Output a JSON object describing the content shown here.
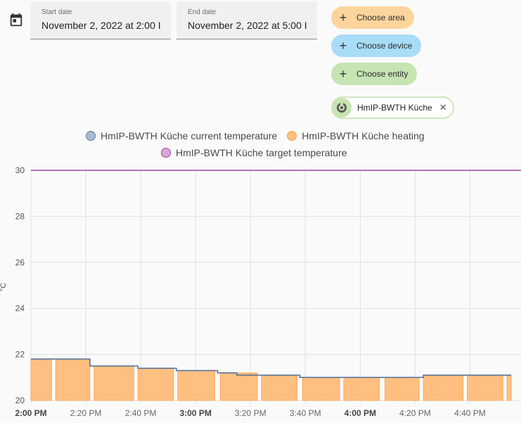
{
  "date_range": {
    "start_label": "Start date",
    "start_value": "November 2, 2022 at 2:00 I",
    "end_label": "End date",
    "end_value": "November 2, 2022 at 5:00 I",
    "icon": "calendar-icon"
  },
  "target_picker": {
    "choose_area": "Choose area",
    "choose_device": "Choose device",
    "choose_entity": "Choose entity",
    "selected_entity": "HmIP-BWTH Küche",
    "colors": {
      "area": "#fdd59c",
      "device": "#a8dcf7",
      "entity": "#c7e4b3"
    }
  },
  "legend": [
    {
      "name": "HmIP-BWTH Küche current temperature",
      "color": "#a9bcd1",
      "border": "#5b7ba0"
    },
    {
      "name": "HmIP-BWTH Küche heating",
      "color": "#ffbf80",
      "border": "#f6a24b"
    },
    {
      "name": "HmIP-BWTH Küche target temperature",
      "color": "#d7a9d6",
      "border": "#9b4a9b"
    }
  ],
  "chart_data": {
    "type": "line",
    "ylabel": "°C",
    "ylim": [
      20,
      30
    ],
    "yticks": [
      20,
      22,
      24,
      26,
      28,
      30
    ],
    "xlim_minutes": [
      0,
      175
    ],
    "xticks": [
      {
        "label": "2:00 PM",
        "bold": true
      },
      {
        "label": "2:20 PM",
        "bold": false
      },
      {
        "label": "2:40 PM",
        "bold": false
      },
      {
        "label": "3:00 PM",
        "bold": true
      },
      {
        "label": "3:20 PM",
        "bold": false
      },
      {
        "label": "3:40 PM",
        "bold": false
      },
      {
        "label": "4:00 PM",
        "bold": true
      },
      {
        "label": "4:20 PM",
        "bold": false
      },
      {
        "label": "4:40 PM",
        "bold": false
      }
    ],
    "xtick_minutes": [
      0,
      20,
      40,
      60,
      80,
      100,
      120,
      140,
      160
    ],
    "grid": true,
    "series": [
      {
        "name": "HmIP-BWTH Küche current temperature",
        "kind": "step",
        "points": [
          [
            0,
            21.8
          ],
          [
            21.5,
            21.5
          ],
          [
            39,
            21.4
          ],
          [
            53,
            21.3
          ],
          [
            68,
            21.2
          ],
          [
            75,
            21.1
          ],
          [
            98,
            21.0
          ],
          [
            143,
            21.1
          ],
          [
            175,
            21.1
          ]
        ]
      },
      {
        "name": "HmIP-BWTH Küche heating",
        "kind": "blocks",
        "blocks": [
          [
            0,
            7.5,
            21.8
          ],
          [
            9,
            21.5,
            21.8
          ],
          [
            23,
            37.5,
            21.5
          ],
          [
            39,
            52,
            21.4
          ],
          [
            53.5,
            67,
            21.3
          ],
          [
            69,
            82.5,
            21.2
          ],
          [
            84,
            97,
            21.1
          ],
          [
            99,
            112.5,
            21.0
          ],
          [
            114,
            127,
            21.0
          ],
          [
            129,
            141.5,
            21.0
          ],
          [
            143,
            157.5,
            21.1
          ],
          [
            159,
            172,
            21.1
          ],
          [
            173.5,
            175,
            21.1
          ]
        ]
      },
      {
        "name": "HmIP-BWTH Küche target temperature",
        "kind": "line",
        "points": [
          [
            0,
            30
          ],
          [
            175,
            30
          ]
        ]
      }
    ]
  }
}
